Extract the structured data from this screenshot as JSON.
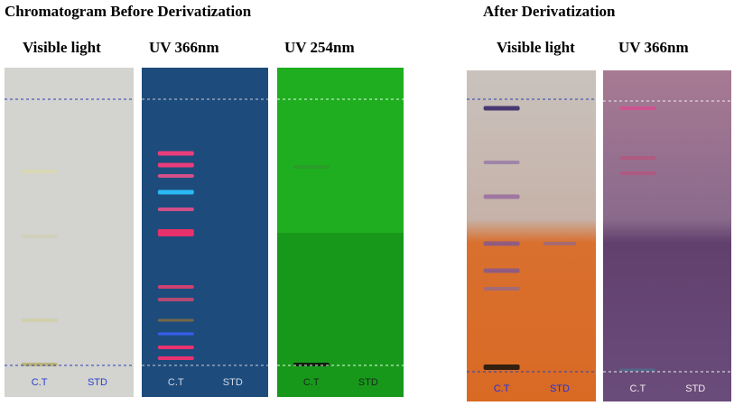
{
  "headings": {
    "before": "Chromatogram Before Derivatization",
    "after": "After Derivatization"
  },
  "plates": [
    {
      "label": "Visible light",
      "lanes": [
        "C.T",
        "STD"
      ]
    },
    {
      "label": "UV 366nm",
      "lanes": [
        "C.T",
        "STD"
      ]
    },
    {
      "label": "UV 254nm",
      "lanes": [
        "C.T",
        "STD"
      ]
    },
    {
      "label": "Visible light",
      "lanes": [
        "C.T",
        "STD"
      ]
    },
    {
      "label": "UV 366nm",
      "lanes": [
        "C.T",
        "STD"
      ]
    }
  ]
}
